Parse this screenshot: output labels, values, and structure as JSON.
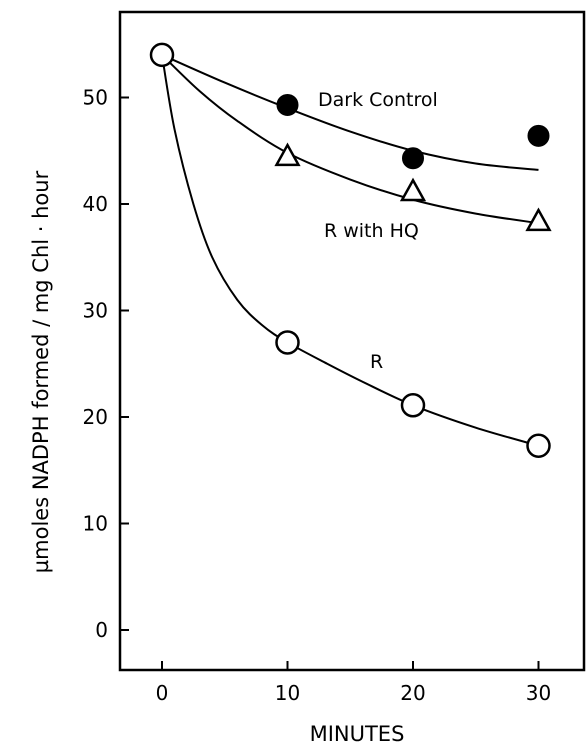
{
  "chart_data": {
    "type": "line",
    "title": "",
    "xlabel": "MINUTES",
    "ylabel": "µmoles NADPH formed / mg Chl · hour",
    "xlim": [
      -4,
      34
    ],
    "ylim": [
      -3,
      58
    ],
    "x_ticks": [
      0,
      10,
      20,
      30
    ],
    "y_ticks": [
      0,
      10,
      20,
      30,
      40,
      50
    ],
    "grid": false,
    "legend": "none",
    "series": [
      {
        "name": "Dark Control",
        "marker": "filled-circle",
        "x": [
          0,
          10,
          20,
          30
        ],
        "y": [
          54,
          49.3,
          44.3,
          46.4
        ],
        "curve_x": [
          0,
          5,
          10,
          15,
          20,
          25,
          30
        ],
        "curve_y": [
          54,
          51.4,
          49.0,
          46.8,
          45.0,
          43.8,
          43.2
        ]
      },
      {
        "name": "R with HQ",
        "marker": "open-triangle",
        "x": [
          0,
          10,
          20,
          30
        ],
        "y": [
          54,
          44.5,
          41.2,
          38.4
        ],
        "curve_x": [
          0,
          3,
          6,
          10,
          15,
          20,
          25,
          30
        ],
        "curve_y": [
          54,
          50.6,
          47.8,
          44.8,
          42.3,
          40.4,
          39.1,
          38.2
        ]
      },
      {
        "name": "R",
        "marker": "open-circle",
        "x": [
          0,
          10,
          20,
          30
        ],
        "y": [
          54,
          27.0,
          21.1,
          17.3
        ],
        "curve_x": [
          0,
          1,
          2.5,
          4,
          6,
          8,
          10,
          13,
          16,
          20,
          25,
          30
        ],
        "curve_y": [
          54,
          47,
          40,
          35,
          31,
          28.6,
          27.0,
          25.1,
          23.3,
          21.1,
          19.0,
          17.3
        ]
      }
    ],
    "annotations": [
      "Dark Control",
      "R with HQ",
      "R"
    ]
  }
}
